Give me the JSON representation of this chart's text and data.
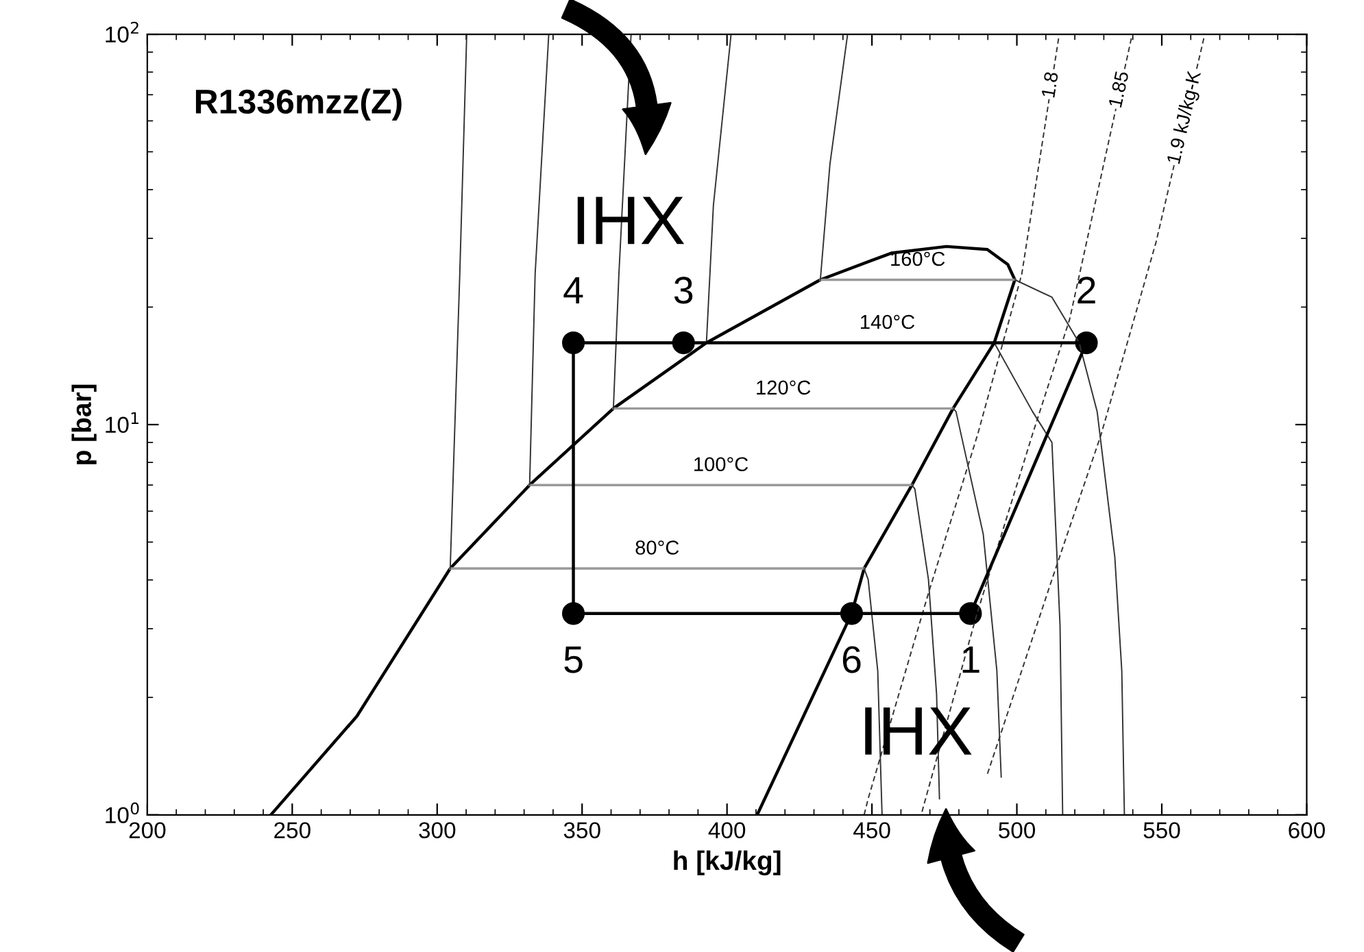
{
  "chart_data": {
    "type": "line",
    "title": "R1336mzz(Z)",
    "xlabel": "h [kJ/kg]",
    "ylabel": "p [bar]",
    "log": "y",
    "xlim": [
      200,
      600
    ],
    "xticks": [
      200,
      250,
      300,
      350,
      400,
      450,
      500,
      550,
      600
    ],
    "ylim": [
      1,
      100
    ],
    "yticks": [
      {
        "value": 1,
        "label": "10$^{0}$"
      },
      {
        "value": 10,
        "label": "10$^{1}$"
      },
      {
        "value": 100,
        "label": "10$^{2}$"
      }
    ],
    "series": [
      {
        "color": "#000000",
        "x": [
          242.6,
          272.3,
          304.5,
          331.9,
          360.8,
          392.9,
          432.2,
          456.7,
          475.7,
          489.8,
          496.9,
          499.3,
          492.2,
          478.0,
          463.8,
          447.3,
          443.0,
          410.4
        ],
        "values": [
          1,
          1.79,
          4.28,
          7.0,
          11.0,
          16.2,
          23.5,
          27.5,
          28.6,
          28.1,
          25.7,
          23.5,
          16.2,
          11.0,
          7.0,
          4.28,
          3.28,
          1
        ]
      },
      {
        "name": "80°C",
        "color": "#999999",
        "x": [
          304.5,
          447.3
        ],
        "values": [
          4.28,
          4.28
        ]
      },
      {
        "name": "100°C",
        "color": "#999999",
        "x": [
          331.9,
          463.8
        ],
        "values": [
          7.0,
          7.0
        ]
      },
      {
        "name": "120°C",
        "color": "#999999",
        "x": [
          360.8,
          478.0
        ],
        "values": [
          11.0,
          11.0
        ]
      },
      {
        "name": "160°C",
        "color": "#999999",
        "x": [
          432.2,
          499.3
        ],
        "values": [
          23.5,
          23.5
        ]
      },
      {
        "color": "#333333",
        "x": [
          304.5,
          307.8,
          310.2
        ],
        "values": [
          4.28,
          24.3,
          100
        ]
      },
      {
        "color": "#333333",
        "x": [
          331.9,
          333.8,
          338.5
        ],
        "values": [
          7.0,
          24.3,
          100
        ]
      },
      {
        "color": "#333333",
        "x": [
          360.8,
          362.7,
          366.9
        ],
        "values": [
          11.0,
          24.3,
          100
        ]
      },
      {
        "color": "#333333",
        "x": [
          392.9,
          395.3,
          401.4
        ],
        "values": [
          16.2,
          36.4,
          100
        ]
      },
      {
        "color": "#333333",
        "x": [
          432.2,
          435.5,
          441.6
        ],
        "values": [
          23.5,
          46.4,
          100
        ]
      },
      {
        "color": "#333333",
        "x": [
          447.3,
          448.7,
          452.0,
          453.4,
          453.5
        ],
        "values": [
          4.28,
          4.01,
          2.34,
          1.05,
          1
        ]
      },
      {
        "color": "#333333",
        "x": [
          463.8,
          464.8,
          469.5,
          472.3,
          473.3
        ],
        "values": [
          7.0,
          6.84,
          4.01,
          2.04,
          1.1
        ]
      },
      {
        "color": "#333333",
        "x": [
          478.0,
          479.0,
          488.4,
          493.1,
          494.6
        ],
        "values": [
          11.0,
          10.8,
          5.24,
          2.34,
          1.25
        ]
      },
      {
        "color": "#333333",
        "x": [
          492.2,
          505.4,
          512.1,
          514.9,
          515.8
        ],
        "values": [
          16.2,
          10.8,
          9.0,
          3.05,
          1
        ]
      },
      {
        "color": "#333333",
        "x": [
          499.3,
          512.1,
          521.5,
          527.7,
          533.8,
          536.2,
          537.1
        ],
        "values": [
          23.5,
          21.2,
          16.2,
          10.8,
          4.57,
          2.34,
          1
        ]
      },
      {
        "name": "1.8",
        "color": "#333333",
        "line_style": "dashed",
        "x": [
          514.4,
          501.7,
          486.5,
          469.5,
          448.7,
          447.3
        ],
        "values": [
          97.6,
          24.3,
          9.45,
          3.7,
          1.1,
          1
        ]
      },
      {
        "name": "1.85",
        "color": "#333333",
        "line_style": "dashed",
        "x": [
          539.5,
          518.2,
          505.4,
          486.0,
          467.6,
          467.0
        ],
        "values": [
          97.6,
          18.6,
          9.45,
          3.23,
          1.04,
          1
        ]
      },
      {
        "name": "1.9 kJ/kg-K",
        "color": "#333333",
        "line_style": "dashed",
        "x": [
          564.5,
          548.0,
          529.1,
          512.1,
          489.8
        ],
        "values": [
          97.6,
          29.3,
          9.45,
          4.01,
          1.27
        ]
      },
      {
        "color": "#000000",
        "x": [
          347,
          524
        ],
        "values": [
          16.2,
          16.2
        ]
      },
      {
        "color": "#000000",
        "x": [
          347,
          484
        ],
        "values": [
          3.28,
          3.28
        ]
      },
      {
        "color": "#000000",
        "x": [
          484,
          524
        ],
        "values": [
          3.28,
          16.2
        ]
      },
      {
        "color": "#000000",
        "x": [
          347,
          347
        ],
        "values": [
          16.2,
          3.28
        ]
      },
      {
        "type": "scatter",
        "color": "#000000",
        "marker": "circle",
        "x": [
          484,
          524,
          385,
          347,
          347,
          443
        ],
        "values": [
          3.28,
          16.2,
          16.2,
          16.2,
          3.28,
          3.28
        ]
      }
    ],
    "annotations": [
      {
        "text": "140°C",
        "x": 455.3,
        "y": 16.2
      },
      {
        "text": "1",
        "x": 484,
        "y": 3.28
      },
      {
        "text": "2",
        "x": 524,
        "y": 16.2
      },
      {
        "text": "3",
        "x": 385,
        "y": 16.2
      },
      {
        "text": "4",
        "x": 347,
        "y": 16.2
      },
      {
        "text": "5",
        "x": 347,
        "y": 3.28
      },
      {
        "text": "6",
        "x": 443,
        "y": 3.28
      },
      "IHX",
      "IHX"
    ]
  }
}
